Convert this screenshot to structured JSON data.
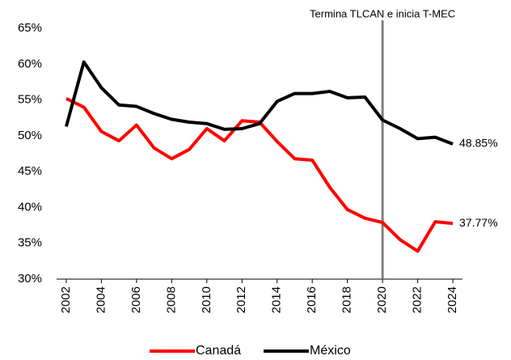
{
  "chart_data": {
    "type": "line",
    "x": [
      2002,
      2003,
      2004,
      2005,
      2006,
      2007,
      2008,
      2009,
      2010,
      2011,
      2012,
      2013,
      2014,
      2015,
      2016,
      2017,
      2018,
      2019,
      2020,
      2021,
      2022,
      2023,
      2024
    ],
    "series": [
      {
        "name": "Canadá",
        "color": "#ff0000",
        "values": [
          55.2,
          54.0,
          50.6,
          49.3,
          51.5,
          48.3,
          46.8,
          48.1,
          51.0,
          49.3,
          52.1,
          51.9,
          49.2,
          46.8,
          46.6,
          42.8,
          39.7,
          38.5,
          37.9,
          35.5,
          33.9,
          38.0,
          37.77
        ],
        "value_labels": [
          null,
          null,
          null,
          null,
          null,
          null,
          null,
          null,
          null,
          null,
          null,
          null,
          null,
          null,
          null,
          null,
          null,
          null,
          null,
          null,
          null,
          null,
          "37.77%"
        ]
      },
      {
        "name": "México",
        "color": "#000000",
        "values": [
          51.3,
          60.3,
          56.7,
          54.3,
          54.1,
          53.1,
          52.3,
          51.9,
          51.7,
          50.9,
          51.0,
          51.7,
          54.8,
          55.9,
          55.9,
          56.2,
          55.3,
          55.4,
          52.2,
          51.0,
          49.6,
          49.8,
          48.85
        ],
        "value_labels": [
          null,
          null,
          null,
          null,
          null,
          null,
          null,
          null,
          null,
          null,
          null,
          null,
          null,
          null,
          null,
          null,
          null,
          null,
          null,
          null,
          null,
          null,
          "48.85%"
        ]
      }
    ],
    "xlim": [
      2001.45,
      2024.55
    ],
    "xticks": [
      2002,
      2004,
      2006,
      2008,
      2010,
      2012,
      2014,
      2016,
      2018,
      2020,
      2022,
      2024
    ],
    "ylim": [
      30,
      65
    ],
    "yticks": [
      {
        "value": 30,
        "label": "30%"
      },
      {
        "value": 35,
        "label": "35%"
      },
      {
        "value": 40,
        "label": "40%"
      },
      {
        "value": 45,
        "label": "45%"
      },
      {
        "value": 50,
        "label": "50%"
      },
      {
        "value": 55,
        "label": "55%"
      },
      {
        "value": 60,
        "label": "60%"
      },
      {
        "value": 65,
        "label": "65%"
      }
    ],
    "grid": false,
    "legend": "bottom",
    "annotations": [
      {
        "text": "Termina TLCAN e inicia T-MEC",
        "x": 2020,
        "color": "#808080"
      }
    ]
  }
}
